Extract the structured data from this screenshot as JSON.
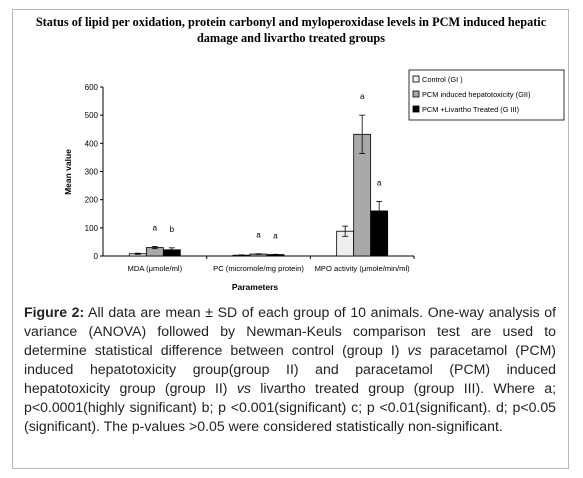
{
  "chart_data": {
    "type": "bar",
    "title": "Status of lipid per oxidation, protein carbonyl and myloperoxidase levels in PCM induced hepatic damage and livartho treated groups",
    "xlabel": "Parameters",
    "ylabel": "Mean value",
    "ylim": [
      0,
      600
    ],
    "yticks": [
      "0",
      "100",
      "200",
      "300",
      "400",
      "500",
      "600"
    ],
    "grid": false,
    "legend_position": "top-right",
    "categories": [
      "MDA (μmole/ml)",
      "PC (micromole/mg protein)",
      "MPO activity (μmole/min/ml)"
    ],
    "series": [
      {
        "name": "Control (GI )",
        "color": "#eeeeee",
        "values": [
          8,
          3,
          88
        ],
        "errors": [
          2,
          1,
          18
        ],
        "sig": [
          "",
          "",
          ""
        ]
      },
      {
        "name": "PCM induced hepatotoxicity (GII)",
        "color": "#a9a9a9",
        "values": [
          30,
          7,
          432
        ],
        "errors": [
          4,
          1,
          68
        ],
        "sig": [
          "a",
          "a",
          "a"
        ]
      },
      {
        "name": "PCM  +Livartho Treated (G III)",
        "color": "#000000",
        "values": [
          22,
          5,
          160
        ],
        "errors": [
          7,
          1,
          34
        ],
        "sig": [
          "b",
          "a",
          "a"
        ]
      }
    ]
  },
  "caption": {
    "label": "Figure 2:",
    "t1": " All data are mean ± SD of each group of 10 animals. One-way analysis of variance (ANOVA) followed by Newman-Keuls comparison test are used to determine statistical difference between control (group I) ",
    "vs1": "vs",
    "t2": " paracetamol (PCM) induced hepatotoxicity group(group II) and paracetamol (PCM) induced hepatotoxicity group (group II) ",
    "vs2": "vs",
    "t3": " livartho treated group (group III). Where a; p<0.0001(highly significant) b; p <0.001(significant) c; p <0.01(significant). d; p<0.05 (significant). The p-values >0.05 were considered statistically non-significant."
  }
}
